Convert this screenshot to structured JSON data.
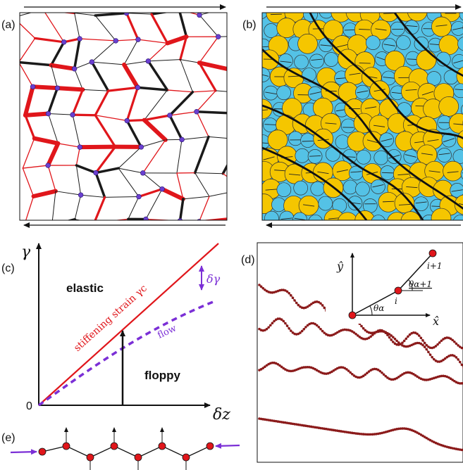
{
  "panels": {
    "a": {
      "label": "(a)"
    },
    "b": {
      "label": "(b)"
    },
    "c": {
      "label": "(c)",
      "y_axis_symbol": "γ",
      "x_axis_symbol": "δz",
      "origin": "0",
      "region_elastic": "elastic",
      "region_floppy": "floppy",
      "line_label": "stiffening strain γc",
      "flow_label": "flow",
      "delta_gamma": "δγ"
    },
    "d": {
      "label": "(d)",
      "axis_y": "ŷ",
      "axis_x": "x̂",
      "node_i": "i",
      "node_i1": "i+1",
      "angle_a": "θα",
      "angle_a1": "θα+1"
    },
    "e": {
      "label": "(e)"
    }
  },
  "colors": {
    "red_bond": "#e0161b",
    "black_bond": "#1a1a1a",
    "node_purple": "#6a3fd0",
    "disk_yellow": "#f5c600",
    "disk_blue": "#54c2e6",
    "flow_purple": "#7b2fd6",
    "chain_node": "#8b1a1a"
  }
}
